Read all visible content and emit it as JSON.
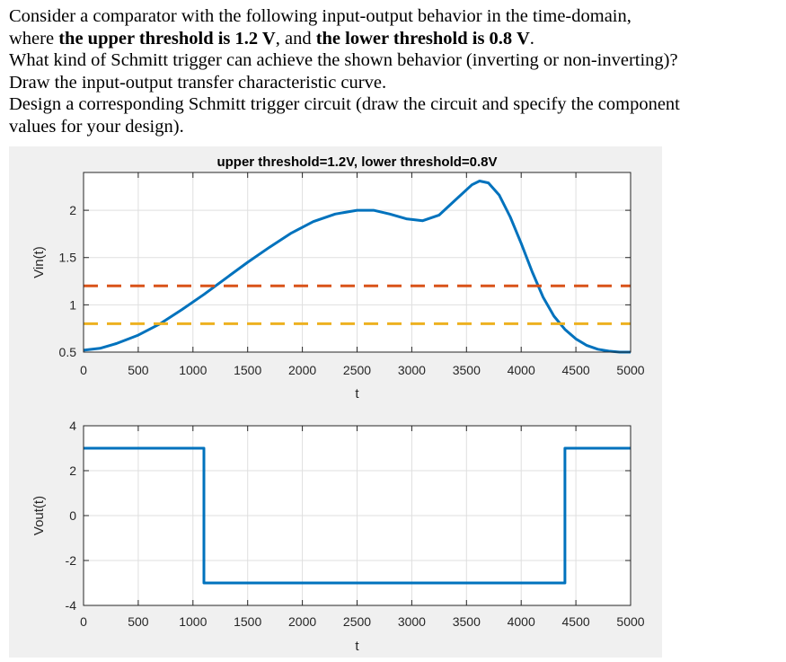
{
  "question": {
    "line1": "Consider a comparator with the following input-output behavior in the time-domain,",
    "line2_prefix": "where ",
    "line2_bold1": "the upper threshold is 1.2 V",
    "line2_mid": ", and ",
    "line2_bold2": "the lower threshold is 0.8 V",
    "line2_suffix": ".",
    "line3": "What kind of Schmitt trigger can achieve the shown behavior (inverting or non-inverting)?",
    "line4": "Draw the input-output transfer characteristic curve.",
    "line5": "Design a corresponding Schmitt trigger circuit (draw the circuit and specify the component",
    "line6": "values for your design)."
  },
  "chart_data": [
    {
      "type": "line",
      "title": "upper threshold=1.2V,  lower threshold=0.8V",
      "xlabel": "t",
      "ylabel": "Vin(t)",
      "xlim": [
        0,
        5000
      ],
      "ylim": [
        0.5,
        2.4
      ],
      "xticks": [
        0,
        500,
        1000,
        1500,
        2000,
        2500,
        3000,
        3500,
        4000,
        4500,
        5000
      ],
      "yticks": [
        0.5,
        1,
        1.5,
        2
      ],
      "ytick_labels": [
        "0.5",
        "1",
        "1.5",
        "2"
      ],
      "grid": true,
      "series": [
        {
          "color": "#0072bd",
          "style": "solid",
          "x": [
            0,
            150,
            300,
            500,
            700,
            900,
            1100,
            1300,
            1500,
            1700,
            1900,
            2100,
            2300,
            2500,
            2650,
            2800,
            2950,
            3100,
            3250,
            3400,
            3550,
            3620,
            3700,
            3800,
            3900,
            4000,
            4100,
            4200,
            4300,
            4400,
            4500,
            4600,
            4700,
            4800,
            4900,
            5000
          ],
          "y": [
            0.52,
            0.54,
            0.59,
            0.68,
            0.8,
            0.95,
            1.11,
            1.28,
            1.45,
            1.61,
            1.76,
            1.88,
            1.96,
            2.0,
            2.0,
            1.96,
            1.91,
            1.89,
            1.95,
            2.11,
            2.27,
            2.31,
            2.29,
            2.16,
            1.93,
            1.65,
            1.35,
            1.08,
            0.88,
            0.74,
            0.64,
            0.57,
            0.53,
            0.51,
            0.5,
            0.5
          ]
        },
        {
          "color": "#d95319",
          "style": "dashed",
          "x": [
            0,
            5000
          ],
          "y": [
            1.2,
            1.2
          ]
        },
        {
          "color": "#edb120",
          "style": "dashed",
          "x": [
            0,
            5000
          ],
          "y": [
            0.8,
            0.8
          ]
        }
      ]
    },
    {
      "type": "line",
      "xlabel": "t",
      "ylabel": "Vout(t)",
      "xlim": [
        0,
        5000
      ],
      "ylim": [
        -4,
        4
      ],
      "xticks": [
        0,
        500,
        1000,
        1500,
        2000,
        2500,
        3000,
        3500,
        4000,
        4500,
        5000
      ],
      "yticks": [
        -4,
        -2,
        0,
        2,
        4
      ],
      "ytick_labels": [
        "-4",
        "-2",
        "0",
        "2",
        "4"
      ],
      "grid": true,
      "series": [
        {
          "color": "#0072bd",
          "style": "solid",
          "x": [
            0,
            1100,
            1100,
            4400,
            4400,
            5000
          ],
          "y": [
            3,
            3,
            -3,
            -3,
            3,
            3
          ]
        }
      ]
    }
  ]
}
